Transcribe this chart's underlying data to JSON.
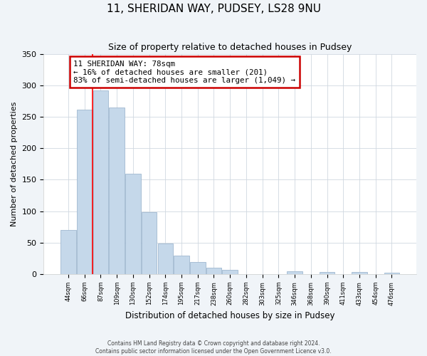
{
  "title1": "11, SHERIDAN WAY, PUDSEY, LS28 9NU",
  "title2": "Size of property relative to detached houses in Pudsey",
  "xlabel": "Distribution of detached houses by size in Pudsey",
  "ylabel": "Number of detached properties",
  "bin_labels": [
    "44sqm",
    "66sqm",
    "87sqm",
    "109sqm",
    "130sqm",
    "152sqm",
    "174sqm",
    "195sqm",
    "217sqm",
    "238sqm",
    "260sqm",
    "282sqm",
    "303sqm",
    "325sqm",
    "346sqm",
    "368sqm",
    "390sqm",
    "411sqm",
    "433sqm",
    "454sqm",
    "476sqm"
  ],
  "bar_heights": [
    70,
    261,
    292,
    265,
    160,
    98,
    49,
    29,
    19,
    10,
    7,
    0,
    0,
    0,
    5,
    0,
    3,
    0,
    3,
    0,
    2
  ],
  "bar_color": "#c5d8ea",
  "bar_edge_color": "#a0b8d0",
  "annotation_line1": "11 SHERIDAN WAY: 78sqm",
  "annotation_line2": "← 16% of detached houses are smaller (201)",
  "annotation_line3": "83% of semi-detached houses are larger (1,049) →",
  "annotation_box_color": "#ffffff",
  "annotation_box_edge_color": "#cc0000",
  "red_line_x": 1.5,
  "ylim": [
    0,
    350
  ],
  "yticks": [
    0,
    50,
    100,
    150,
    200,
    250,
    300,
    350
  ],
  "footer1": "Contains HM Land Registry data © Crown copyright and database right 2024.",
  "footer2": "Contains public sector information licensed under the Open Government Licence v3.0.",
  "background_color": "#f0f4f8",
  "plot_background": "#ffffff",
  "grid_color": "#d0d8e0"
}
